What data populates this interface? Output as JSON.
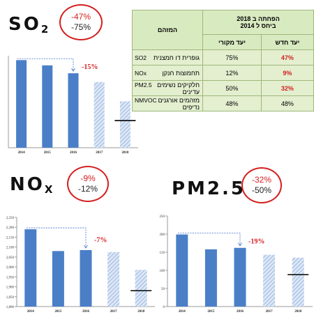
{
  "titles": {
    "so2": {
      "main": "SO",
      "sub": "2"
    },
    "nox": {
      "main": "NO",
      "sub": "X"
    },
    "pm": {
      "main": "PM2.5"
    }
  },
  "rings": {
    "so2": {
      "line1": "-47%",
      "line2": "-75%"
    },
    "nox": {
      "line1": "-9%",
      "line2": "-12%"
    },
    "pm": {
      "line1": "-32%",
      "line2": "-50%"
    }
  },
  "table": {
    "header_main": "הפחתה ב 2018\nביחס ל 2014",
    "header_pollutant": "המזהם",
    "col_new": "יעד חדש",
    "col_orig": "יעד מקורי",
    "rows": [
      {
        "name": "גופרית דו חמצנית",
        "chem": "SO2",
        "orig": "75%",
        "new": "47%",
        "new_red": true
      },
      {
        "name": "תחמוצות חנקן",
        "chem": "NOx",
        "orig": "12%",
        "new": "9%",
        "new_red": true
      },
      {
        "name": "חלקיקים נשימים עדינים",
        "chem": "PM2.5",
        "orig": "50%",
        "new": "32%",
        "new_red": true
      },
      {
        "name": "מזהמים אורגנים נדיפים",
        "chem": "NMVOC",
        "orig": "48%",
        "new": "48%",
        "new_red": false
      }
    ]
  },
  "colors": {
    "bar": "#4a7fc8",
    "hatch": "#9db8df",
    "red": "#d32020",
    "arrow": "#3a6fc8"
  },
  "chart_data": [
    {
      "type": "bar",
      "name": "so2",
      "categories": [
        "2014",
        "2015",
        "2016",
        "2017",
        "2018"
      ],
      "values": [
        100,
        94,
        85,
        75,
        53
      ],
      "projected": [
        false,
        false,
        false,
        true,
        true
      ],
      "target_line": 31,
      "annotation": "-15%",
      "ylim": [
        0,
        105
      ],
      "yticks": []
    },
    {
      "type": "bar",
      "name": "nox",
      "categories": [
        "2014",
        "2015",
        "2016",
        "2017",
        "2018"
      ],
      "values": [
        2190,
        2080,
        2085,
        2075,
        1985
      ],
      "projected": [
        false,
        false,
        false,
        true,
        true
      ],
      "target_line": 1880,
      "annotation": "-7%",
      "ylim": [
        1800,
        2250
      ],
      "yticks": [
        "1,800",
        "1,850",
        "1,900",
        "1,950",
        "2,000",
        "2,050",
        "2,100",
        "2,150",
        "2,200",
        "2,250"
      ]
    },
    {
      "type": "bar",
      "name": "pm",
      "categories": [
        "2014",
        "2015",
        "2016",
        "2017",
        "2018"
      ],
      "values": [
        199,
        158,
        162,
        143,
        135
      ],
      "projected": [
        false,
        false,
        false,
        true,
        true
      ],
      "target_line": 88,
      "annotation": "-19%",
      "ylim": [
        0,
        250
      ],
      "yticks": [
        "0",
        "50",
        "100",
        "150",
        "200",
        "250"
      ]
    }
  ]
}
